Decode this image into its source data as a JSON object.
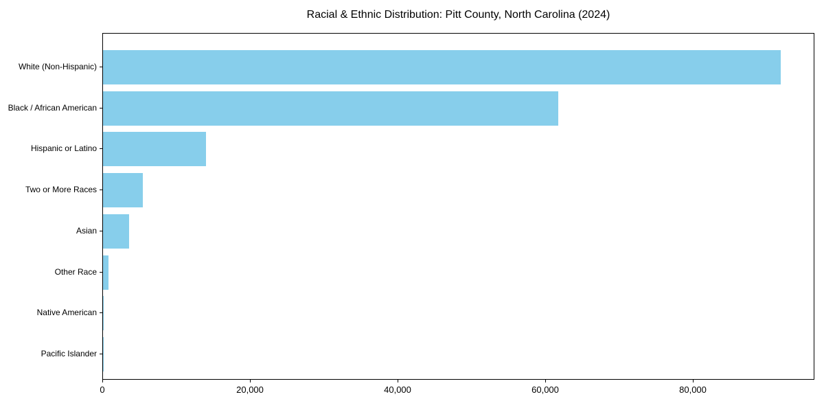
{
  "chart_data": {
    "type": "bar",
    "orientation": "horizontal",
    "title": "Racial & Ethnic Distribution: Pitt County, North Carolina (2024)",
    "categories": [
      "White (Non-Hispanic)",
      "Black / African American",
      "Hispanic or Latino",
      "Two or More Races",
      "Asian",
      "Other Race",
      "Native American",
      "Pacific Islander"
    ],
    "values": [
      91800,
      61650,
      13950,
      5420,
      3500,
      715,
      100,
      40
    ],
    "xlabel": "",
    "ylabel": "",
    "xlim": [
      0,
      96465
    ],
    "x_ticks": [
      0,
      20000,
      40000,
      60000,
      80000
    ],
    "x_tick_labels": [
      "0",
      "20,000",
      "40,000",
      "60,000",
      "80,000"
    ],
    "bar_color": "#87CEEB",
    "axis_color": "#000000",
    "background_color": "#FFFFFF",
    "grid": false,
    "legend_position": "none"
  }
}
